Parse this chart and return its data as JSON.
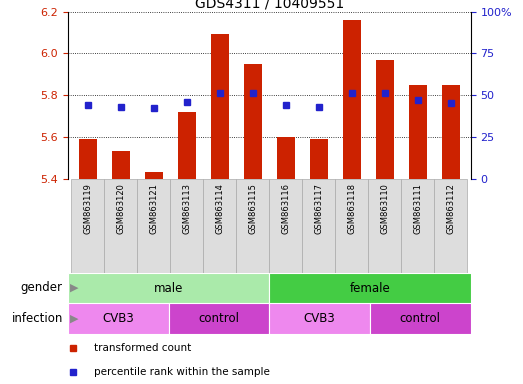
{
  "title": "GDS4311 / 10409551",
  "samples": [
    "GSM863119",
    "GSM863120",
    "GSM863121",
    "GSM863113",
    "GSM863114",
    "GSM863115",
    "GSM863116",
    "GSM863117",
    "GSM863118",
    "GSM863110",
    "GSM863111",
    "GSM863112"
  ],
  "transformed_count": [
    5.59,
    5.53,
    5.43,
    5.72,
    6.09,
    5.95,
    5.6,
    5.59,
    6.16,
    5.97,
    5.85,
    5.85
  ],
  "percentile_rank": [
    44,
    43,
    42,
    46,
    51,
    51,
    44,
    43,
    51,
    51,
    47,
    45
  ],
  "ylim": [
    5.4,
    6.2
  ],
  "yticks": [
    5.4,
    5.6,
    5.8,
    6.0,
    6.2
  ],
  "right_yticks": [
    0,
    25,
    50,
    75,
    100
  ],
  "right_ylabels": [
    "0",
    "25",
    "50",
    "75",
    "100%"
  ],
  "bar_color": "#cc2200",
  "dot_color": "#2222cc",
  "gender_labels": [
    {
      "label": "male",
      "start": 0,
      "end": 6,
      "color": "#aaeaaa"
    },
    {
      "label": "female",
      "start": 6,
      "end": 12,
      "color": "#44cc44"
    }
  ],
  "infection_labels": [
    {
      "label": "CVB3",
      "start": 0,
      "end": 3,
      "color": "#ee88ee"
    },
    {
      "label": "control",
      "start": 3,
      "end": 6,
      "color": "#cc44cc"
    },
    {
      "label": "CVB3",
      "start": 6,
      "end": 9,
      "color": "#ee88ee"
    },
    {
      "label": "control",
      "start": 9,
      "end": 12,
      "color": "#cc44cc"
    }
  ],
  "legend_items": [
    {
      "label": "transformed count",
      "color": "#cc2200"
    },
    {
      "label": "percentile rank within the sample",
      "color": "#2222cc"
    }
  ],
  "title_fontsize": 10,
  "tick_fontsize": 8,
  "sample_fontsize": 6,
  "label_fontsize": 8.5,
  "legend_fontsize": 7.5,
  "xtick_bg": "#dddddd",
  "xtick_border": "#aaaaaa"
}
